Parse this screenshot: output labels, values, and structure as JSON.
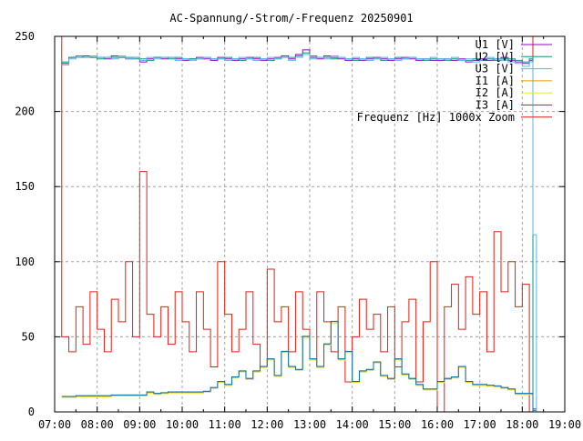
{
  "chart_data": {
    "type": "line",
    "title": "AC-Spannung/-Strom/-Frequenz 20250901",
    "xlabel": "",
    "ylabel": "",
    "xlim": [
      "07:00",
      "19:00"
    ],
    "ylim": [
      0,
      250
    ],
    "xticks": [
      "07:00",
      "08:00",
      "09:00",
      "10:00",
      "11:00",
      "12:00",
      "13:00",
      "14:00",
      "15:00",
      "16:00",
      "17:00",
      "18:00",
      "19:00"
    ],
    "yticks": [
      "0",
      "50",
      "100",
      "150",
      "200",
      "250"
    ],
    "grid": true,
    "legend_position": "top-right",
    "line_style": "steps",
    "x": [
      "07:05",
      "07:10",
      "07:20",
      "07:30",
      "07:40",
      "07:50",
      "08:00",
      "08:10",
      "08:20",
      "08:30",
      "08:40",
      "08:50",
      "09:00",
      "09:10",
      "09:20",
      "09:30",
      "09:40",
      "09:50",
      "10:00",
      "10:10",
      "10:20",
      "10:30",
      "10:40",
      "10:50",
      "11:00",
      "11:10",
      "11:20",
      "11:30",
      "11:40",
      "11:50",
      "12:00",
      "12:10",
      "12:20",
      "12:30",
      "12:40",
      "12:50",
      "13:00",
      "13:10",
      "13:20",
      "13:30",
      "13:40",
      "13:50",
      "14:00",
      "14:10",
      "14:20",
      "14:30",
      "14:40",
      "14:50",
      "15:00",
      "15:10",
      "15:20",
      "15:30",
      "15:40",
      "15:50",
      "16:00",
      "16:10",
      "16:20",
      "16:30",
      "16:40",
      "16:50",
      "17:00",
      "17:10",
      "17:20",
      "17:30",
      "17:40",
      "17:50",
      "18:00",
      "18:10",
      "18:15",
      "18:20"
    ],
    "series": [
      {
        "name": "U1 [V]",
        "color": "#9400d3",
        "values": [
          null,
          232,
          236,
          236,
          237,
          236,
          236,
          235,
          237,
          236,
          235,
          236,
          233,
          235,
          236,
          235,
          236,
          235,
          234,
          235,
          236,
          235,
          234,
          236,
          235,
          234,
          235,
          236,
          235,
          234,
          235,
          236,
          237,
          235,
          238,
          241,
          236,
          235,
          237,
          236,
          235,
          234,
          235,
          234,
          235,
          236,
          235,
          234,
          235,
          236,
          235,
          234,
          235,
          234,
          234,
          235,
          234,
          235,
          233,
          234,
          235,
          234,
          235,
          236,
          234,
          233,
          232,
          234,
          2,
          2
        ]
      },
      {
        "name": "U2 [V]",
        "color": "#009e73",
        "values": [
          null,
          233,
          236,
          237,
          236,
          236,
          235,
          236,
          236,
          236,
          236,
          235,
          235,
          234,
          236,
          236,
          235,
          236,
          235,
          235,
          235,
          236,
          235,
          235,
          236,
          235,
          234,
          235,
          236,
          235,
          234,
          235,
          236,
          236,
          237,
          239,
          237,
          236,
          236,
          235,
          236,
          235,
          234,
          235,
          236,
          235,
          234,
          235,
          236,
          235,
          236,
          235,
          234,
          235,
          235,
          234,
          235,
          234,
          234,
          235,
          234,
          235,
          234,
          235,
          235,
          234,
          233,
          235,
          1,
          1
        ]
      },
      {
        "name": "U3 [V]",
        "color": "#56b4e9",
        "values": [
          null,
          231,
          235,
          236,
          236,
          237,
          236,
          236,
          235,
          237,
          235,
          236,
          234,
          236,
          235,
          236,
          236,
          234,
          235,
          234,
          235,
          236,
          235,
          235,
          234,
          235,
          236,
          235,
          234,
          235,
          236,
          235,
          236,
          234,
          236,
          238,
          235,
          236,
          235,
          237,
          236,
          235,
          236,
          235,
          234,
          235,
          236,
          235,
          234,
          235,
          236,
          235,
          235,
          236,
          235,
          235,
          236,
          234,
          235,
          233,
          234,
          236,
          235,
          234,
          233,
          232,
          230,
          233,
          118,
          0
        ]
      },
      {
        "name": "I1 [A]",
        "color": "#e69f00",
        "values": [
          null,
          10,
          10,
          10.5,
          10.5,
          10.5,
          10.5,
          10.5,
          11,
          11,
          11,
          11,
          11,
          13,
          12,
          12.5,
          13,
          13,
          13,
          13,
          13,
          13.5,
          16,
          20,
          18,
          23,
          27,
          22,
          27,
          30,
          35,
          24,
          40,
          30,
          28,
          50,
          35,
          30,
          45,
          60,
          35,
          40,
          20,
          27,
          28,
          33,
          24,
          22,
          35,
          25,
          22,
          18,
          15,
          15,
          20,
          22,
          23,
          30,
          20,
          18,
          18,
          17.5,
          17,
          16,
          15,
          12,
          12,
          12,
          0,
          0
        ]
      },
      {
        "name": "I2 [A]",
        "color": "#f0e442",
        "values": [
          null,
          9.5,
          9.5,
          10,
          10,
          10,
          10,
          10,
          10.5,
          10.5,
          10.5,
          10.5,
          10.5,
          12.5,
          11.5,
          12,
          12.5,
          12.5,
          12.5,
          12.5,
          12.5,
          13,
          15.5,
          19.5,
          17.5,
          22.5,
          26.5,
          21.5,
          26.5,
          29.5,
          34.5,
          23.5,
          39.5,
          29.5,
          27.5,
          49,
          34.5,
          29.5,
          44.5,
          59,
          34.5,
          39.5,
          19.5,
          26.5,
          27.5,
          32.5,
          23.5,
          21.5,
          34.5,
          24.5,
          21.5,
          17.5,
          14.5,
          14.5,
          19.5,
          21.5,
          22.5,
          29.5,
          19.5,
          17.5,
          17.5,
          17,
          16.5,
          15.5,
          14.5,
          11.5,
          11.5,
          11.5,
          0,
          0
        ]
      },
      {
        "name": "I3 [A]",
        "color": "#0072b2",
        "values": [
          null,
          10.3,
          10.3,
          10.8,
          10.8,
          10.8,
          10.8,
          10.8,
          11.3,
          11.3,
          11.3,
          11.3,
          11.3,
          13.3,
          12.3,
          12.8,
          13.3,
          13.3,
          13.3,
          13.3,
          13.3,
          13.8,
          16.3,
          20.3,
          18.3,
          23.3,
          27.3,
          22.3,
          27.3,
          30.3,
          35.3,
          24.3,
          40.3,
          30.3,
          28.3,
          50.3,
          35.3,
          30.3,
          45.3,
          60.3,
          35.3,
          40.3,
          20.3,
          27.3,
          28.3,
          33.3,
          24.3,
          22.3,
          35.3,
          25.3,
          22.3,
          18.3,
          15.3,
          15.3,
          20.3,
          22.3,
          23.3,
          30.3,
          20.3,
          18.3,
          18.3,
          17.8,
          17.3,
          16.3,
          15.3,
          12.3,
          12.3,
          12.3,
          0,
          0
        ]
      },
      {
        "name": "Frequenz [Hz] 1000x Zoom",
        "color": "#e51e10",
        "values": [
          250,
          50,
          40,
          70,
          45,
          80,
          55,
          40,
          75,
          60,
          100,
          50,
          160,
          65,
          50,
          70,
          45,
          80,
          60,
          40,
          80,
          55,
          30,
          100,
          65,
          40,
          55,
          80,
          45,
          30,
          95,
          60,
          70,
          40,
          80,
          55,
          35,
          80,
          60,
          40,
          70,
          20,
          50,
          75,
          55,
          65,
          40,
          70,
          30,
          60,
          75,
          20,
          60,
          100,
          0,
          70,
          85,
          55,
          90,
          65,
          80,
          40,
          120,
          80,
          100,
          70,
          85,
          0,
          250,
          null
        ]
      }
    ]
  }
}
